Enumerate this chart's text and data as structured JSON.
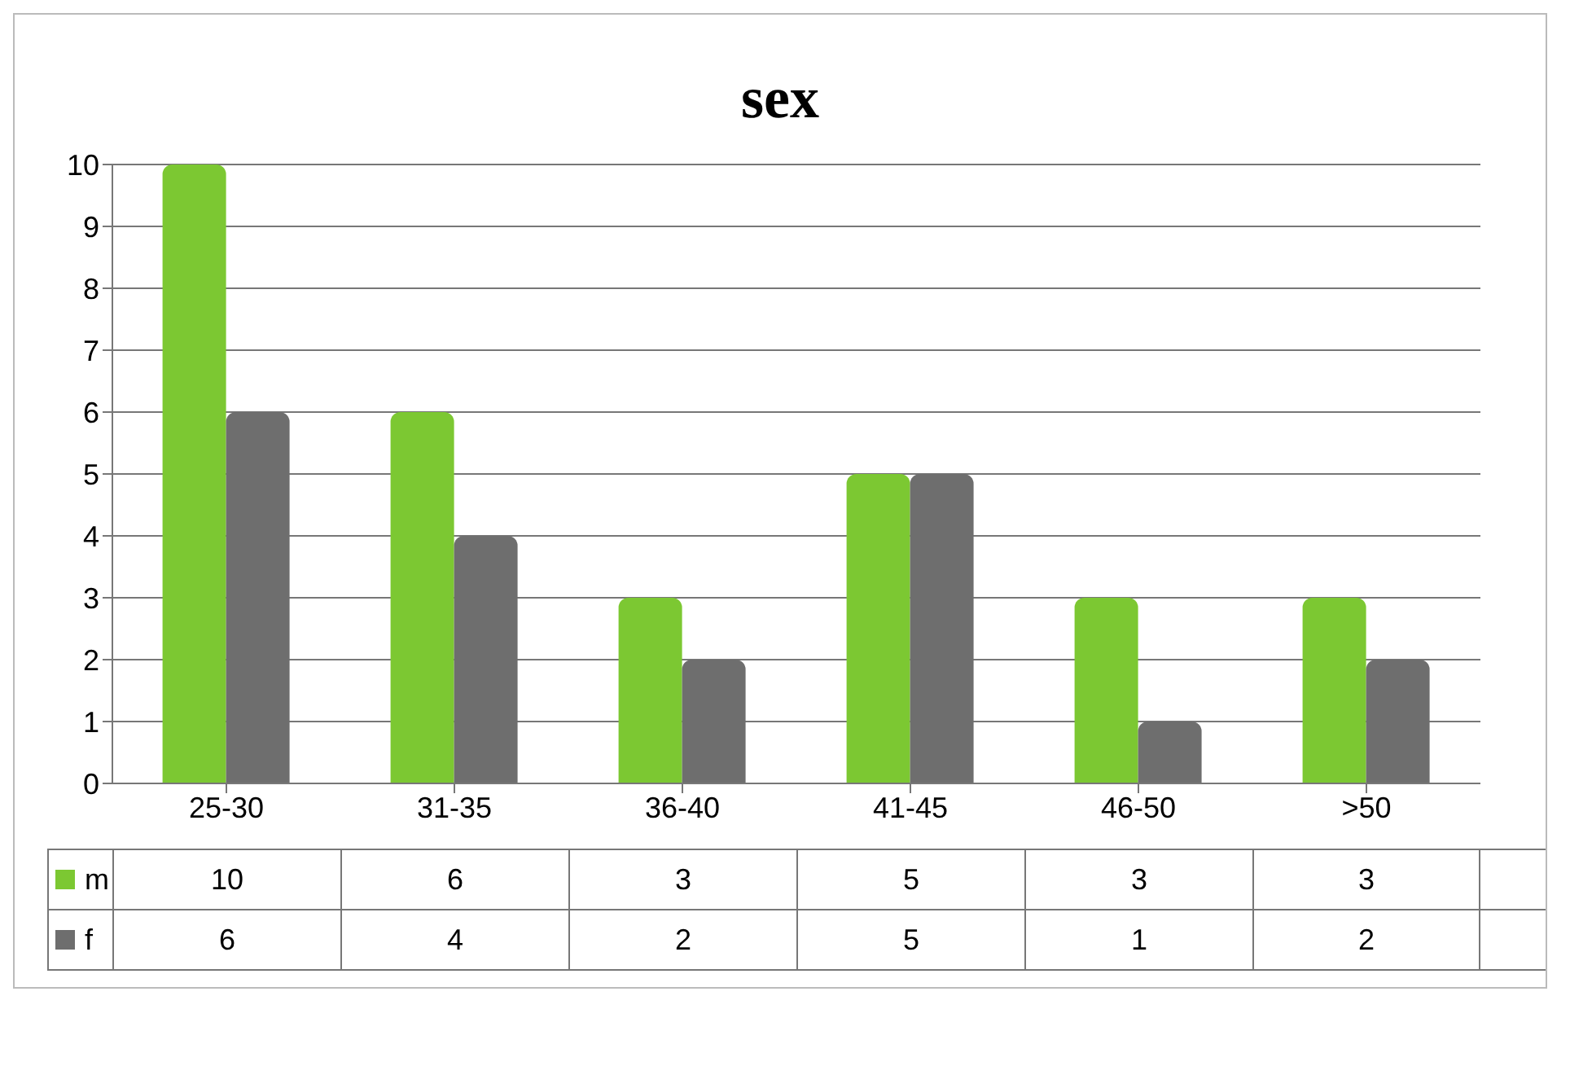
{
  "chart_data": {
    "type": "bar",
    "title": "sex",
    "categories": [
      "25-30",
      "31-35",
      "36-40",
      "41-45",
      "46-50",
      ">50"
    ],
    "series": [
      {
        "name": "m",
        "color": "#7cc832",
        "values": [
          10,
          6,
          3,
          5,
          3,
          3
        ]
      },
      {
        "name": "f",
        "color": "#6e6e6e",
        "values": [
          6,
          4,
          2,
          5,
          1,
          2
        ]
      }
    ],
    "ylim": [
      0,
      10
    ],
    "yticks": [
      0,
      1,
      2,
      3,
      4,
      5,
      6,
      7,
      8,
      9,
      10
    ],
    "grid": "y",
    "legend": "bottom",
    "data_labels": true
  }
}
